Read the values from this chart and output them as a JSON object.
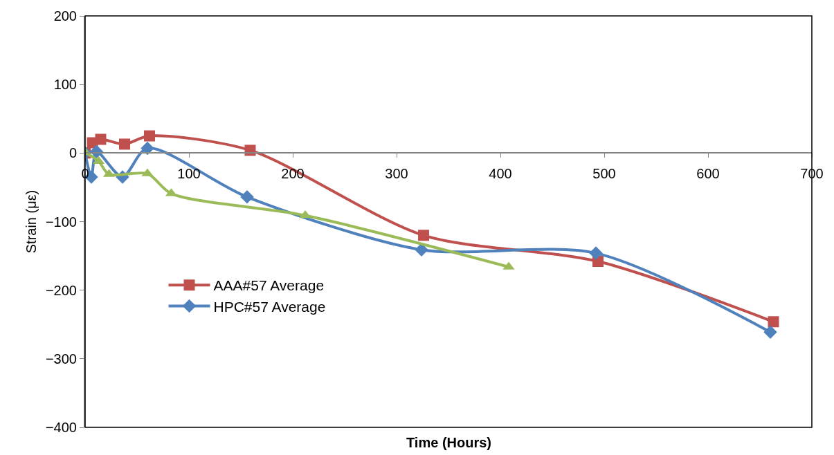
{
  "chart_data": {
    "type": "line",
    "xlabel": "Time (Hours)",
    "ylabel": "Strain (με)",
    "xlim": [
      0,
      700
    ],
    "xticks": [
      0,
      100,
      200,
      300,
      400,
      500,
      600,
      700
    ],
    "ylim": [
      -400,
      200
    ],
    "yticks": [
      -400,
      -300,
      -200,
      -100,
      0,
      100,
      200
    ],
    "legend": "left",
    "line_style": "solid",
    "series": [
      {
        "name": "AAA#57 Average",
        "color": "#c0504d",
        "marker": "square",
        "x": [
          0,
          7,
          15,
          38,
          62,
          159,
          326,
          494,
          663
        ],
        "values": [
          0,
          15,
          20,
          13,
          25,
          4,
          -120,
          -158,
          -246
        ]
      },
      {
        "name": "HPC#57 Average",
        "color": "#4f81bd",
        "marker": "diamond",
        "x": [
          0,
          6,
          11,
          36,
          60,
          156,
          324,
          492,
          660
        ],
        "values": [
          0,
          -35,
          2,
          -35,
          7,
          -64,
          -141,
          -146,
          -261
        ]
      },
      {
        "color": "#9bbb59",
        "marker": "triangle",
        "x": [
          0,
          13,
          23,
          60,
          83,
          212,
          408
        ],
        "values": [
          1,
          -12,
          -31,
          -30,
          -59,
          -91,
          -166
        ]
      }
    ]
  }
}
